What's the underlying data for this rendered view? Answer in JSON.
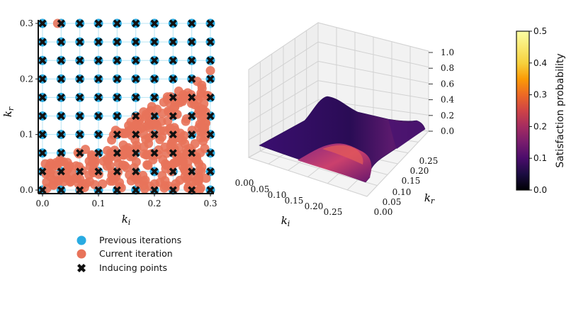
{
  "colors": {
    "previous": "#29abe2",
    "current": "#e8735a",
    "inducing": "#111111",
    "grid": "#b8e6f4"
  },
  "chart_data": [
    {
      "type": "scatter",
      "xlabel": "k_i",
      "ylabel": "k_r",
      "xlim": [
        0.0,
        0.3
      ],
      "ylim": [
        0.0,
        0.3
      ],
      "x_ticks": [
        "0.0",
        "0.1",
        "0.2",
        "0.3"
      ],
      "y_ticks": [
        "0.0",
        "0.1",
        "0.2",
        "0.3"
      ],
      "grid_values": [
        0.0,
        0.0333,
        0.0667,
        0.1,
        0.1333,
        0.1667,
        0.2,
        0.2333,
        0.2667,
        0.3
      ],
      "series": [
        {
          "name": "Previous iterations",
          "marker": "circle",
          "layout": "10x10 grid over [0,0.3]x[0,0.3]"
        },
        {
          "name": "Current iteration",
          "marker": "circle",
          "note": "dense cloud, mostly k_i 0.0-0.3, k_r below ~0.2",
          "extra_points": [
            [
              0.027,
              0.3
            ],
            [
              0.3,
              0.215
            ],
            [
              0.296,
              0.17
            ]
          ]
        },
        {
          "name": "Inducing points",
          "marker": "x",
          "layout": "same 10x10 grid as previous iterations"
        }
      ],
      "legend": {
        "placement": "below",
        "entries": [
          "Previous iterations",
          "Current iteration",
          "Inducing points"
        ]
      }
    },
    {
      "type": "surface3d",
      "xlabel": "k_i",
      "ylabel": "k_r",
      "zlabel": "",
      "x_ticks": [
        "0.00",
        "0.05",
        "0.10",
        "0.15",
        "0.20",
        "0.25"
      ],
      "y_ticks": [
        "0.00",
        "0.05",
        "0.10",
        "0.15",
        "0.20",
        "0.25"
      ],
      "z_ticks": [
        "0.0",
        "0.2",
        "0.4",
        "0.6",
        "0.8",
        "1.0"
      ],
      "zlim": [
        0.0,
        1.0
      ],
      "note": "low flat surface near z~0.05, slight rise at edges and a warm ridge near k_i~0.2, low k_r"
    },
    {
      "type": "colorbar",
      "label": "Satisfaction probability",
      "colormap": "inferno",
      "range": [
        0.0,
        0.5
      ],
      "ticks": [
        "0.0",
        "0.1",
        "0.2",
        "0.3",
        "0.4",
        "0.5"
      ]
    }
  ]
}
